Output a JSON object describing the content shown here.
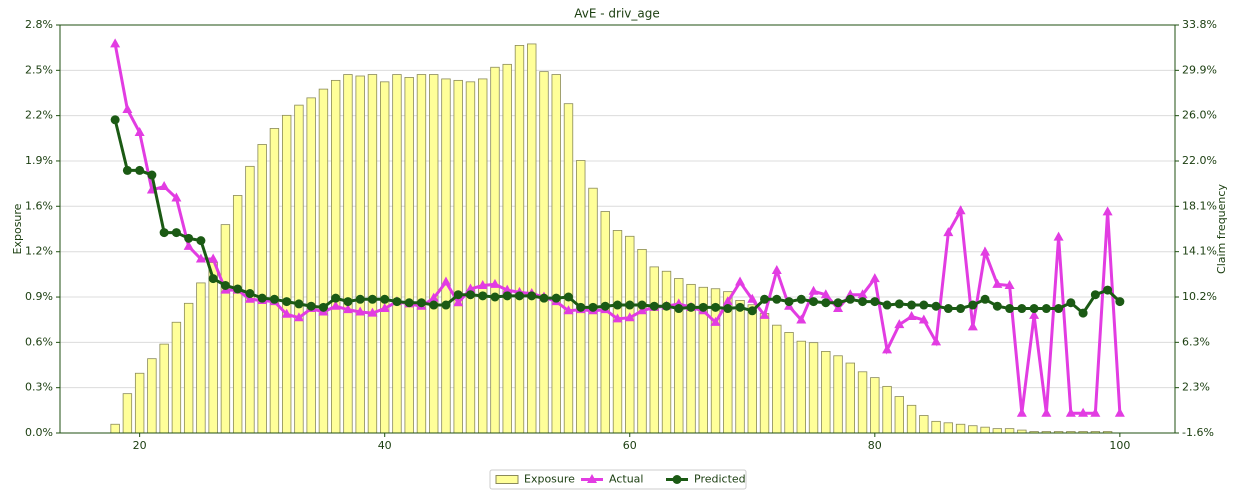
{
  "chart_data": {
    "type": "bar-line",
    "title": "AvE - driv_age",
    "y_label": "Exposure",
    "y2_label": "Claim frequency",
    "x": [
      18,
      19,
      20,
      21,
      22,
      23,
      24,
      25,
      26,
      27,
      28,
      29,
      30,
      31,
      32,
      33,
      34,
      35,
      36,
      37,
      38,
      39,
      40,
      41,
      42,
      43,
      44,
      45,
      46,
      47,
      48,
      49,
      50,
      51,
      52,
      53,
      54,
      55,
      56,
      57,
      58,
      59,
      60,
      61,
      62,
      63,
      64,
      65,
      66,
      67,
      68,
      69,
      70,
      71,
      72,
      73,
      74,
      75,
      76,
      77,
      78,
      79,
      80,
      81,
      82,
      83,
      84,
      85,
      86,
      87,
      88,
      89,
      90,
      91,
      92,
      93,
      94,
      95,
      96,
      97,
      98,
      99,
      100
    ],
    "xlim": [
      13.5,
      104.5
    ],
    "xticks": [
      20,
      40,
      60,
      80,
      100
    ],
    "ylim": [
      0,
      2.8
    ],
    "yticks": [
      {
        "value": 0,
        "label": "0.0%"
      },
      {
        "value": 0.311,
        "label": "0.3%"
      },
      {
        "value": 0.622,
        "label": "0.6%"
      },
      {
        "value": 0.933,
        "label": "0.9%"
      },
      {
        "value": 1.244,
        "label": "1.2%"
      },
      {
        "value": 1.556,
        "label": "1.6%"
      },
      {
        "value": 1.867,
        "label": "1.9%"
      },
      {
        "value": 2.178,
        "label": "2.2%"
      },
      {
        "value": 2.489,
        "label": "2.5%"
      },
      {
        "value": 2.8,
        "label": "2.8%"
      }
    ],
    "y2lim": [
      -1.62,
      33.84
    ],
    "y2ticks": [
      {
        "value": -1.62,
        "label": "-1.6%"
      },
      {
        "value": 2.32,
        "label": "2.3%"
      },
      {
        "value": 6.26,
        "label": "6.3%"
      },
      {
        "value": 10.2,
        "label": "10.2%"
      },
      {
        "value": 14.14,
        "label": "14.1%"
      },
      {
        "value": 18.08,
        "label": "18.1%"
      },
      {
        "value": 22.02,
        "label": "22.0%"
      },
      {
        "value": 25.96,
        "label": "26.0%"
      },
      {
        "value": 29.9,
        "label": "29.9%"
      },
      {
        "value": 33.84,
        "label": "33.8%"
      }
    ],
    "grid": true,
    "legend": "bottom center",
    "series": [
      {
        "name": "Exposure",
        "kind": "bar",
        "color": "#ffff99",
        "edge": "#8a8a5a",
        "values": [
          0.06,
          0.27,
          0.41,
          0.51,
          0.61,
          0.76,
          0.89,
          1.03,
          1.17,
          1.43,
          1.63,
          1.83,
          1.98,
          2.09,
          2.18,
          2.25,
          2.3,
          2.36,
          2.42,
          2.46,
          2.45,
          2.46,
          2.41,
          2.46,
          2.44,
          2.46,
          2.46,
          2.43,
          2.42,
          2.41,
          2.43,
          2.51,
          2.53,
          2.66,
          2.67,
          2.48,
          2.46,
          2.26,
          1.87,
          1.68,
          1.52,
          1.39,
          1.35,
          1.26,
          1.14,
          1.11,
          1.06,
          1.02,
          1.0,
          0.99,
          0.97,
          0.91,
          0.88,
          0.82,
          0.74,
          0.69,
          0.63,
          0.62,
          0.56,
          0.53,
          0.48,
          0.42,
          0.38,
          0.32,
          0.25,
          0.19,
          0.12,
          0.08,
          0.07,
          0.06,
          0.05,
          0.04,
          0.03,
          0.03,
          0.02,
          0.01,
          0.01,
          0.01,
          0.01,
          0.01,
          0.01,
          0.01,
          0.0
        ]
      },
      {
        "name": "Actual",
        "kind": "line",
        "marker": "triangle",
        "axis": "y2",
        "color": "#e23ce2",
        "values": [
          32.2,
          26.5,
          24.5,
          19.5,
          19.8,
          18.8,
          14.6,
          13.5,
          13.5,
          10.8,
          10.8,
          10.0,
          9.9,
          9.8,
          8.7,
          8.4,
          9.2,
          8.9,
          9.4,
          9.1,
          8.9,
          8.8,
          9.2,
          9.8,
          9.6,
          9.4,
          10.1,
          11.5,
          9.7,
          10.9,
          11.2,
          11.3,
          10.8,
          10.6,
          10.5,
          10.2,
          9.8,
          9.0,
          9.1,
          9.0,
          9.1,
          8.3,
          8.4,
          9.0,
          9.3,
          9.4,
          9.6,
          9.3,
          9.0,
          8.0,
          9.8,
          11.5,
          10.0,
          8.6,
          12.5,
          9.4,
          8.2,
          10.7,
          10.4,
          9.2,
          10.4,
          10.4,
          11.8,
          5.6,
          7.8,
          8.5,
          8.2,
          6.3,
          15.8,
          17.7,
          7.6,
          14.1,
          11.3,
          11.2,
          0.1,
          8.6,
          0.1,
          15.4,
          0.1,
          0.1,
          0.1,
          17.6,
          0.1
        ]
      },
      {
        "name": "Predicted",
        "kind": "line",
        "marker": "circle",
        "axis": "y2",
        "color": "#1b5a14",
        "values": [
          25.6,
          21.2,
          21.2,
          20.8,
          15.8,
          15.8,
          15.3,
          15.1,
          11.8,
          11.2,
          10.9,
          10.5,
          10.1,
          10.0,
          9.8,
          9.6,
          9.4,
          9.3,
          10.1,
          9.8,
          10.0,
          10.0,
          10.0,
          9.8,
          9.7,
          9.7,
          9.5,
          9.5,
          10.4,
          10.4,
          10.3,
          10.2,
          10.3,
          10.3,
          10.3,
          10.1,
          10.1,
          10.2,
          9.3,
          9.3,
          9.4,
          9.5,
          9.5,
          9.5,
          9.4,
          9.4,
          9.2,
          9.3,
          9.3,
          9.3,
          9.2,
          9.3,
          9.0,
          10.0,
          10.0,
          9.8,
          10.0,
          9.8,
          9.7,
          9.7,
          10.0,
          9.8,
          9.8,
          9.5,
          9.6,
          9.5,
          9.5,
          9.4,
          9.2,
          9.2,
          9.5,
          10.0,
          9.4,
          9.2,
          9.2,
          9.2,
          9.2,
          9.2,
          9.7,
          8.8,
          10.4,
          10.8,
          9.8
        ]
      }
    ]
  }
}
